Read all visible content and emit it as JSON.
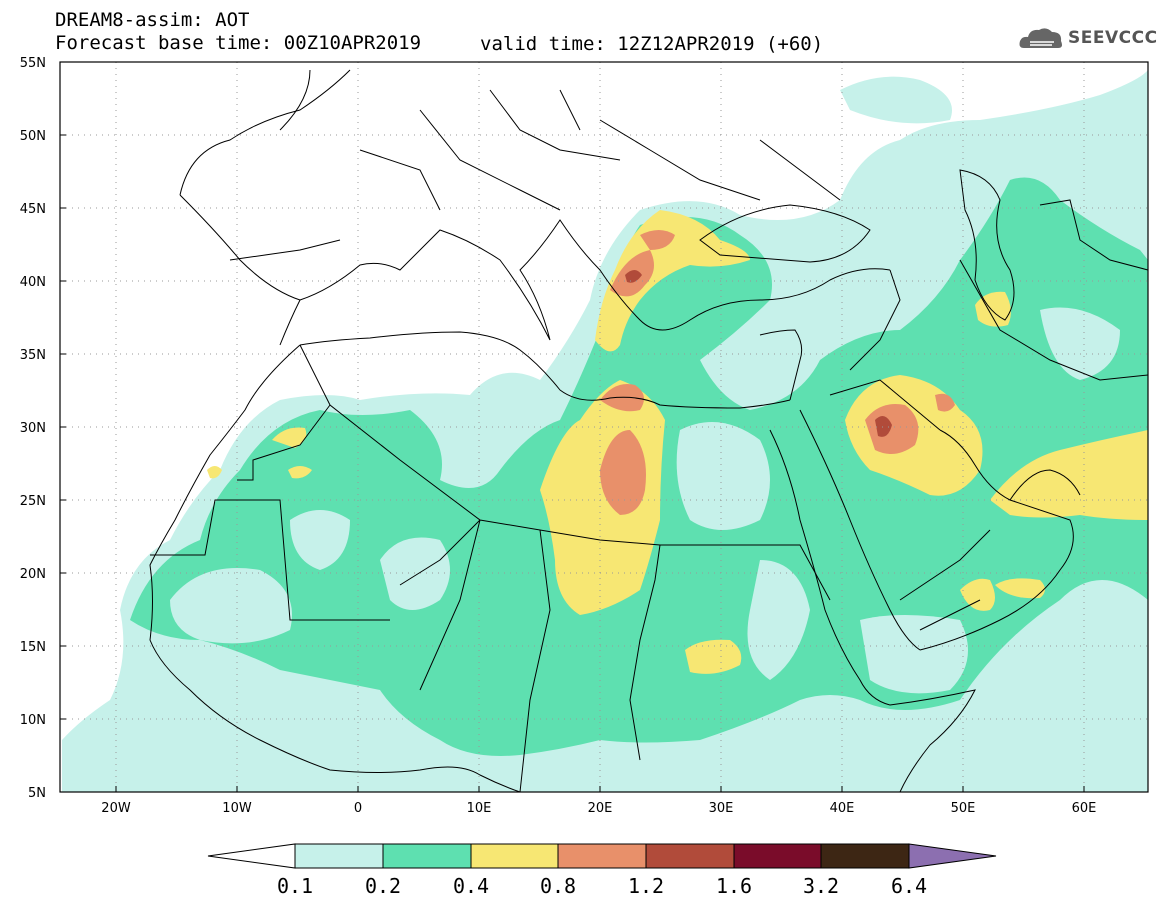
{
  "header": {
    "model_title": "DREAM8-assim: AOT",
    "base_time": "Forecast base time: 00Z10APR2019",
    "valid_time": "valid time: 12Z12APR2019 (+60)",
    "logo_text": "SEEVCCC"
  },
  "map": {
    "lat_labels": [
      "55N",
      "50N",
      "45N",
      "40N",
      "35N",
      "30N",
      "25N",
      "20N",
      "15N",
      "10N",
      "5N"
    ],
    "lon_labels": [
      "20W",
      "10W",
      "0",
      "10E",
      "20E",
      "30E",
      "40E",
      "50E",
      "60E"
    ],
    "lat_range": [
      5,
      55
    ],
    "lon_range": [
      -25,
      65
    ],
    "grid": "dotted"
  },
  "colorbar": {
    "labels": [
      "0.1",
      "0.2",
      "0.4",
      "0.8",
      "1.2",
      "1.6",
      "3.2",
      "6.4"
    ],
    "colors": [
      "#ffffff",
      "#c6f1ea",
      "#5ee0b0",
      "#f7e773",
      "#e8906a",
      "#b14b3a",
      "#7a0c2a",
      "#3d2614",
      "#8c6fb0"
    ]
  },
  "colors": {
    "aot_0_1": "#c6f1ea",
    "aot_0_2": "#5ee0b0",
    "aot_0_4": "#f7e773",
    "aot_0_8": "#e8906a",
    "aot_1_2": "#b14b3a"
  }
}
